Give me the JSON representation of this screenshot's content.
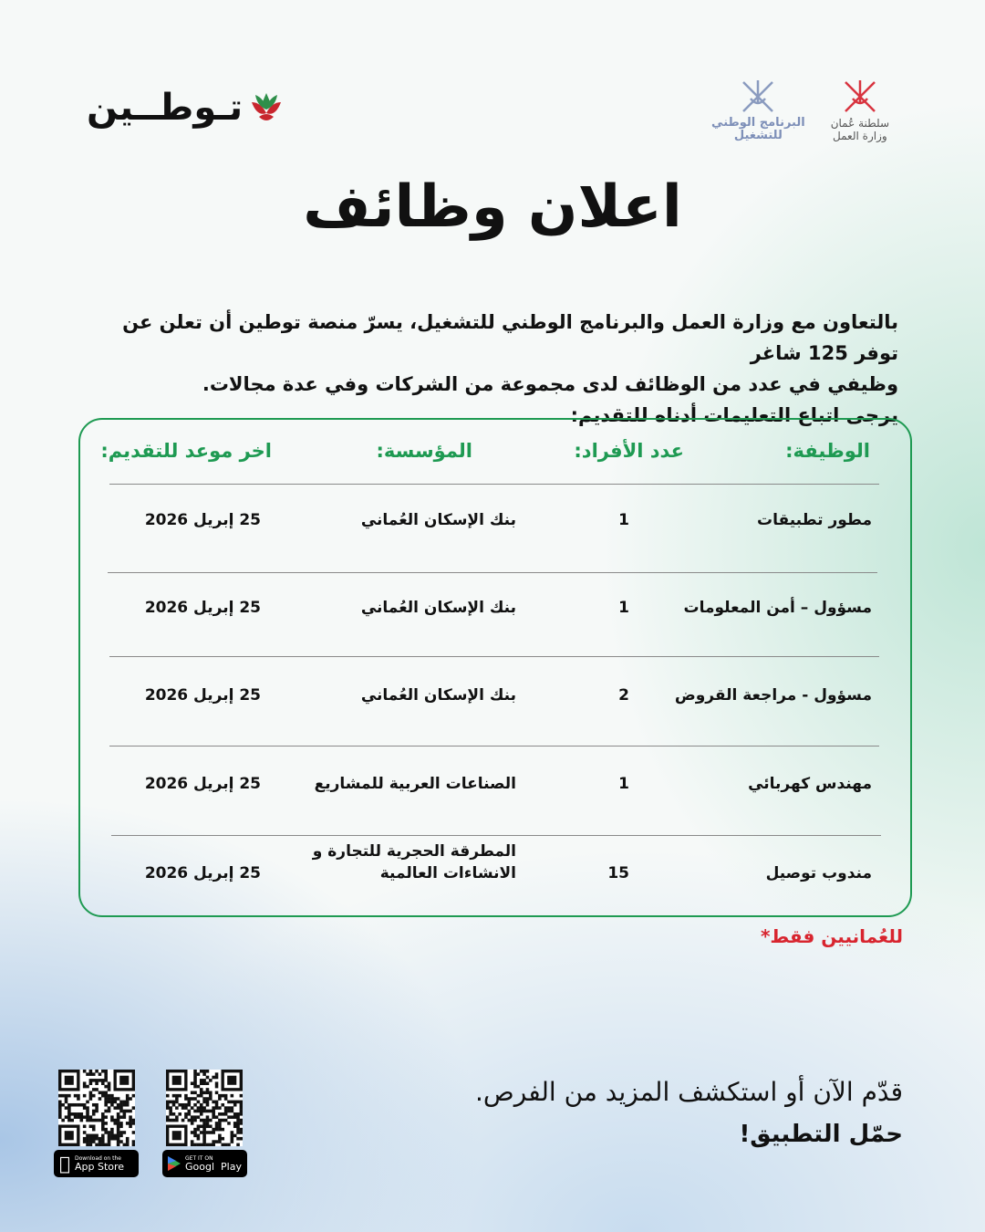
{
  "brand": {
    "name": "تـوطــين"
  },
  "logos": {
    "ministry": {
      "line1": "سلطنة عُمان",
      "line2": "وزارة العمل",
      "color": "#d8343f"
    },
    "program": {
      "line1": "البرنامج الوطني",
      "line2": "للتشغيل",
      "color": "#8a9bbf"
    }
  },
  "title": "اعلان وظائف",
  "intro": {
    "line1": "بالتعاون مع وزارة العمل والبرنامج الوطني للتشغيل، يسرّ منصة توطين أن تعلن عن توفر 125 شاغر",
    "line2": "وظيفي في عدد من الوظائف لدى مجموعة من الشركات وفي عدة مجالات.",
    "line3": "يرجى اتباع التعليمات أدناه للتقديم:"
  },
  "table": {
    "headers": {
      "job": "الوظيفة:",
      "count": "عدد الأفراد:",
      "institution": "المؤسسة:",
      "deadline": "اخر موعد للتقديم:"
    },
    "rows": [
      {
        "job": "مطور تطبيقات",
        "count": "1",
        "institution": "بنك الإسكان العُماني",
        "deadline": "25 إبريل 2026"
      },
      {
        "job": "مسؤول – أمن المعلومات",
        "count": "1",
        "institution": "بنك الإسكان العُماني",
        "deadline": "25 إبريل 2026"
      },
      {
        "job": "مسؤول - مراجعة القروض",
        "count": "2",
        "institution": "بنك الإسكان العُماني",
        "deadline": "25 إبريل 2026"
      },
      {
        "job": "مهندس كهربائي",
        "count": "1",
        "institution": "الصناعات العربية للمشاريع",
        "deadline": "25 إبريل 2026"
      },
      {
        "job": "مندوب توصيل",
        "count": "15",
        "institution": "المطرقة الحجرية للتجارة و",
        "institution2": "الانشاءات العالمية",
        "deadline": "25 إبريل 2026"
      }
    ],
    "accent": "#1e9a52"
  },
  "note": "للعُمانيين فقط*",
  "cta": {
    "line1": "قدّم الآن أو استكشف المزيد من الفرص.",
    "line2": "حمّل التطبيق!"
  },
  "stores": {
    "apple": {
      "small": "Download on the",
      "big": "App Store"
    },
    "google": {
      "small": "GET IT ON",
      "big": "Googl  Play"
    }
  }
}
